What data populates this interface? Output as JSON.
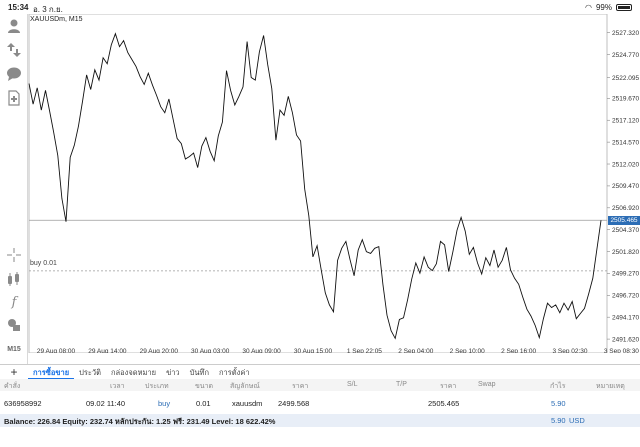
{
  "status_bar": {
    "time": "15:34",
    "date": "อ. 3 ก.ย.",
    "battery": "99%"
  },
  "chart": {
    "symbol": "XAUUSDm, M15",
    "current_price": "2505.465",
    "buy_line_label": "buy 0.01",
    "period_label": "M15",
    "price_ticks": [
      "2527.320",
      "2524.770",
      "2522.095",
      "2519.670",
      "2517.120",
      "2514.570",
      "2512.020",
      "2509.470",
      "2506.920",
      "2504.370",
      "2501.820",
      "2499.270",
      "2496.720",
      "2494.170",
      "2491.620"
    ],
    "time_ticks": [
      "29 Aug 08:00",
      "29 Aug 14:00",
      "29 Aug 20:00",
      "30 Aug 03:00",
      "30 Aug 09:00",
      "30 Aug 15:00",
      "1 Sep 22:05",
      "2 Sep 04:00",
      "2 Sep 10:00",
      "2 Sep 16:00",
      "3 Sep 02:30",
      "3 Sep 08:30"
    ]
  },
  "chart_data": {
    "type": "line",
    "title": "XAUUSDm, M15",
    "xlabel": "",
    "ylabel": "",
    "ylim": [
      2490.0,
      2529.5
    ],
    "grid": true,
    "y": [
      2521.4,
      2519.0,
      2520.9,
      2518.3,
      2520.6,
      2518.2,
      2515.7,
      2513.0,
      2508.0,
      2505.3,
      2512.8,
      2514.2,
      2516.4,
      2519.3,
      2522.4,
      2520.7,
      2523.0,
      2521.8,
      2524.4,
      2523.7,
      2525.9,
      2527.2,
      2525.7,
      2526.4,
      2525.0,
      2524.2,
      2523.4,
      2522.2,
      2521.3,
      2522.6,
      2521.2,
      2520.0,
      2518.7,
      2518.0,
      2519.6,
      2517.3,
      2515.0,
      2514.4,
      2512.6,
      2512.9,
      2513.3,
      2511.6,
      2514.1,
      2515.1,
      2513.5,
      2512.4,
      2515.3,
      2516.9,
      2522.9,
      2520.6,
      2518.9,
      2519.9,
      2521.0,
      2526.3,
      2522.1,
      2521.8,
      2525.1,
      2527.0,
      2523.6,
      2520.8,
      2514.8,
      2518.3,
      2517.7,
      2519.9,
      2518.0,
      2515.4,
      2514.7,
      2509.1,
      2506.0,
      2501.2,
      2502.5,
      2499.7,
      2497.0,
      2495.6,
      2494.8,
      2500.8,
      2502.2,
      2503.0,
      2500.9,
      2499.0,
      2502.0,
      2503.2,
      2501.8,
      2501.6,
      2502.2,
      2502.4,
      2498.0,
      2494.4,
      2492.6,
      2491.7,
      2493.9,
      2494.1,
      2496.2,
      2498.6,
      2500.5,
      2499.3,
      2501.2,
      2500.0,
      2499.6,
      2500.4,
      2503.0,
      2502.6,
      2499.5,
      2501.8,
      2504.3,
      2505.8,
      2504.2,
      2501.5,
      2502.3,
      2500.5,
      2499.2,
      2501.1,
      2500.2,
      2502.0,
      2500.0,
      2500.8,
      2502.3,
      2499.7,
      2498.7,
      2498.0,
      2496.5,
      2495.1,
      2494.3,
      2493.2,
      2491.8,
      2494.0,
      2495.8,
      2495.3,
      2495.6,
      2494.7,
      2495.8,
      2495.0,
      2496.0,
      2494.0,
      2494.6,
      2495.2,
      2496.9,
      2498.7,
      2502.1,
      2505.465
    ]
  },
  "positions": {
    "tabs": [
      "การซื้อขาย",
      "ประวัติ",
      "กล่องจดหมาย",
      "ข่าว",
      "บันทึก",
      "การตั้งค่า"
    ],
    "columns": [
      "คำสั่ง",
      "เวลา",
      "ประเภท",
      "ขนาด",
      "สัญลักษณ์",
      "ราคา",
      "S/L",
      "T/P",
      "ราคา",
      "Swap",
      "กำไร",
      "หมายเหตุ"
    ],
    "row": {
      "order": "636958992",
      "time": "09.02 11:40",
      "type": "buy",
      "size": "0.01",
      "symbol": "xauusdm",
      "open_price": "2499.568",
      "current_price": "2505.465",
      "profit": "5.90"
    },
    "summary_text": "Balance: 226.84 Equity: 232.74 หลักประกัน: 1.25 ฟรี: 231.49 Level: 18 622.42%",
    "summary_profit": "5.90",
    "summary_currency": "USD"
  }
}
